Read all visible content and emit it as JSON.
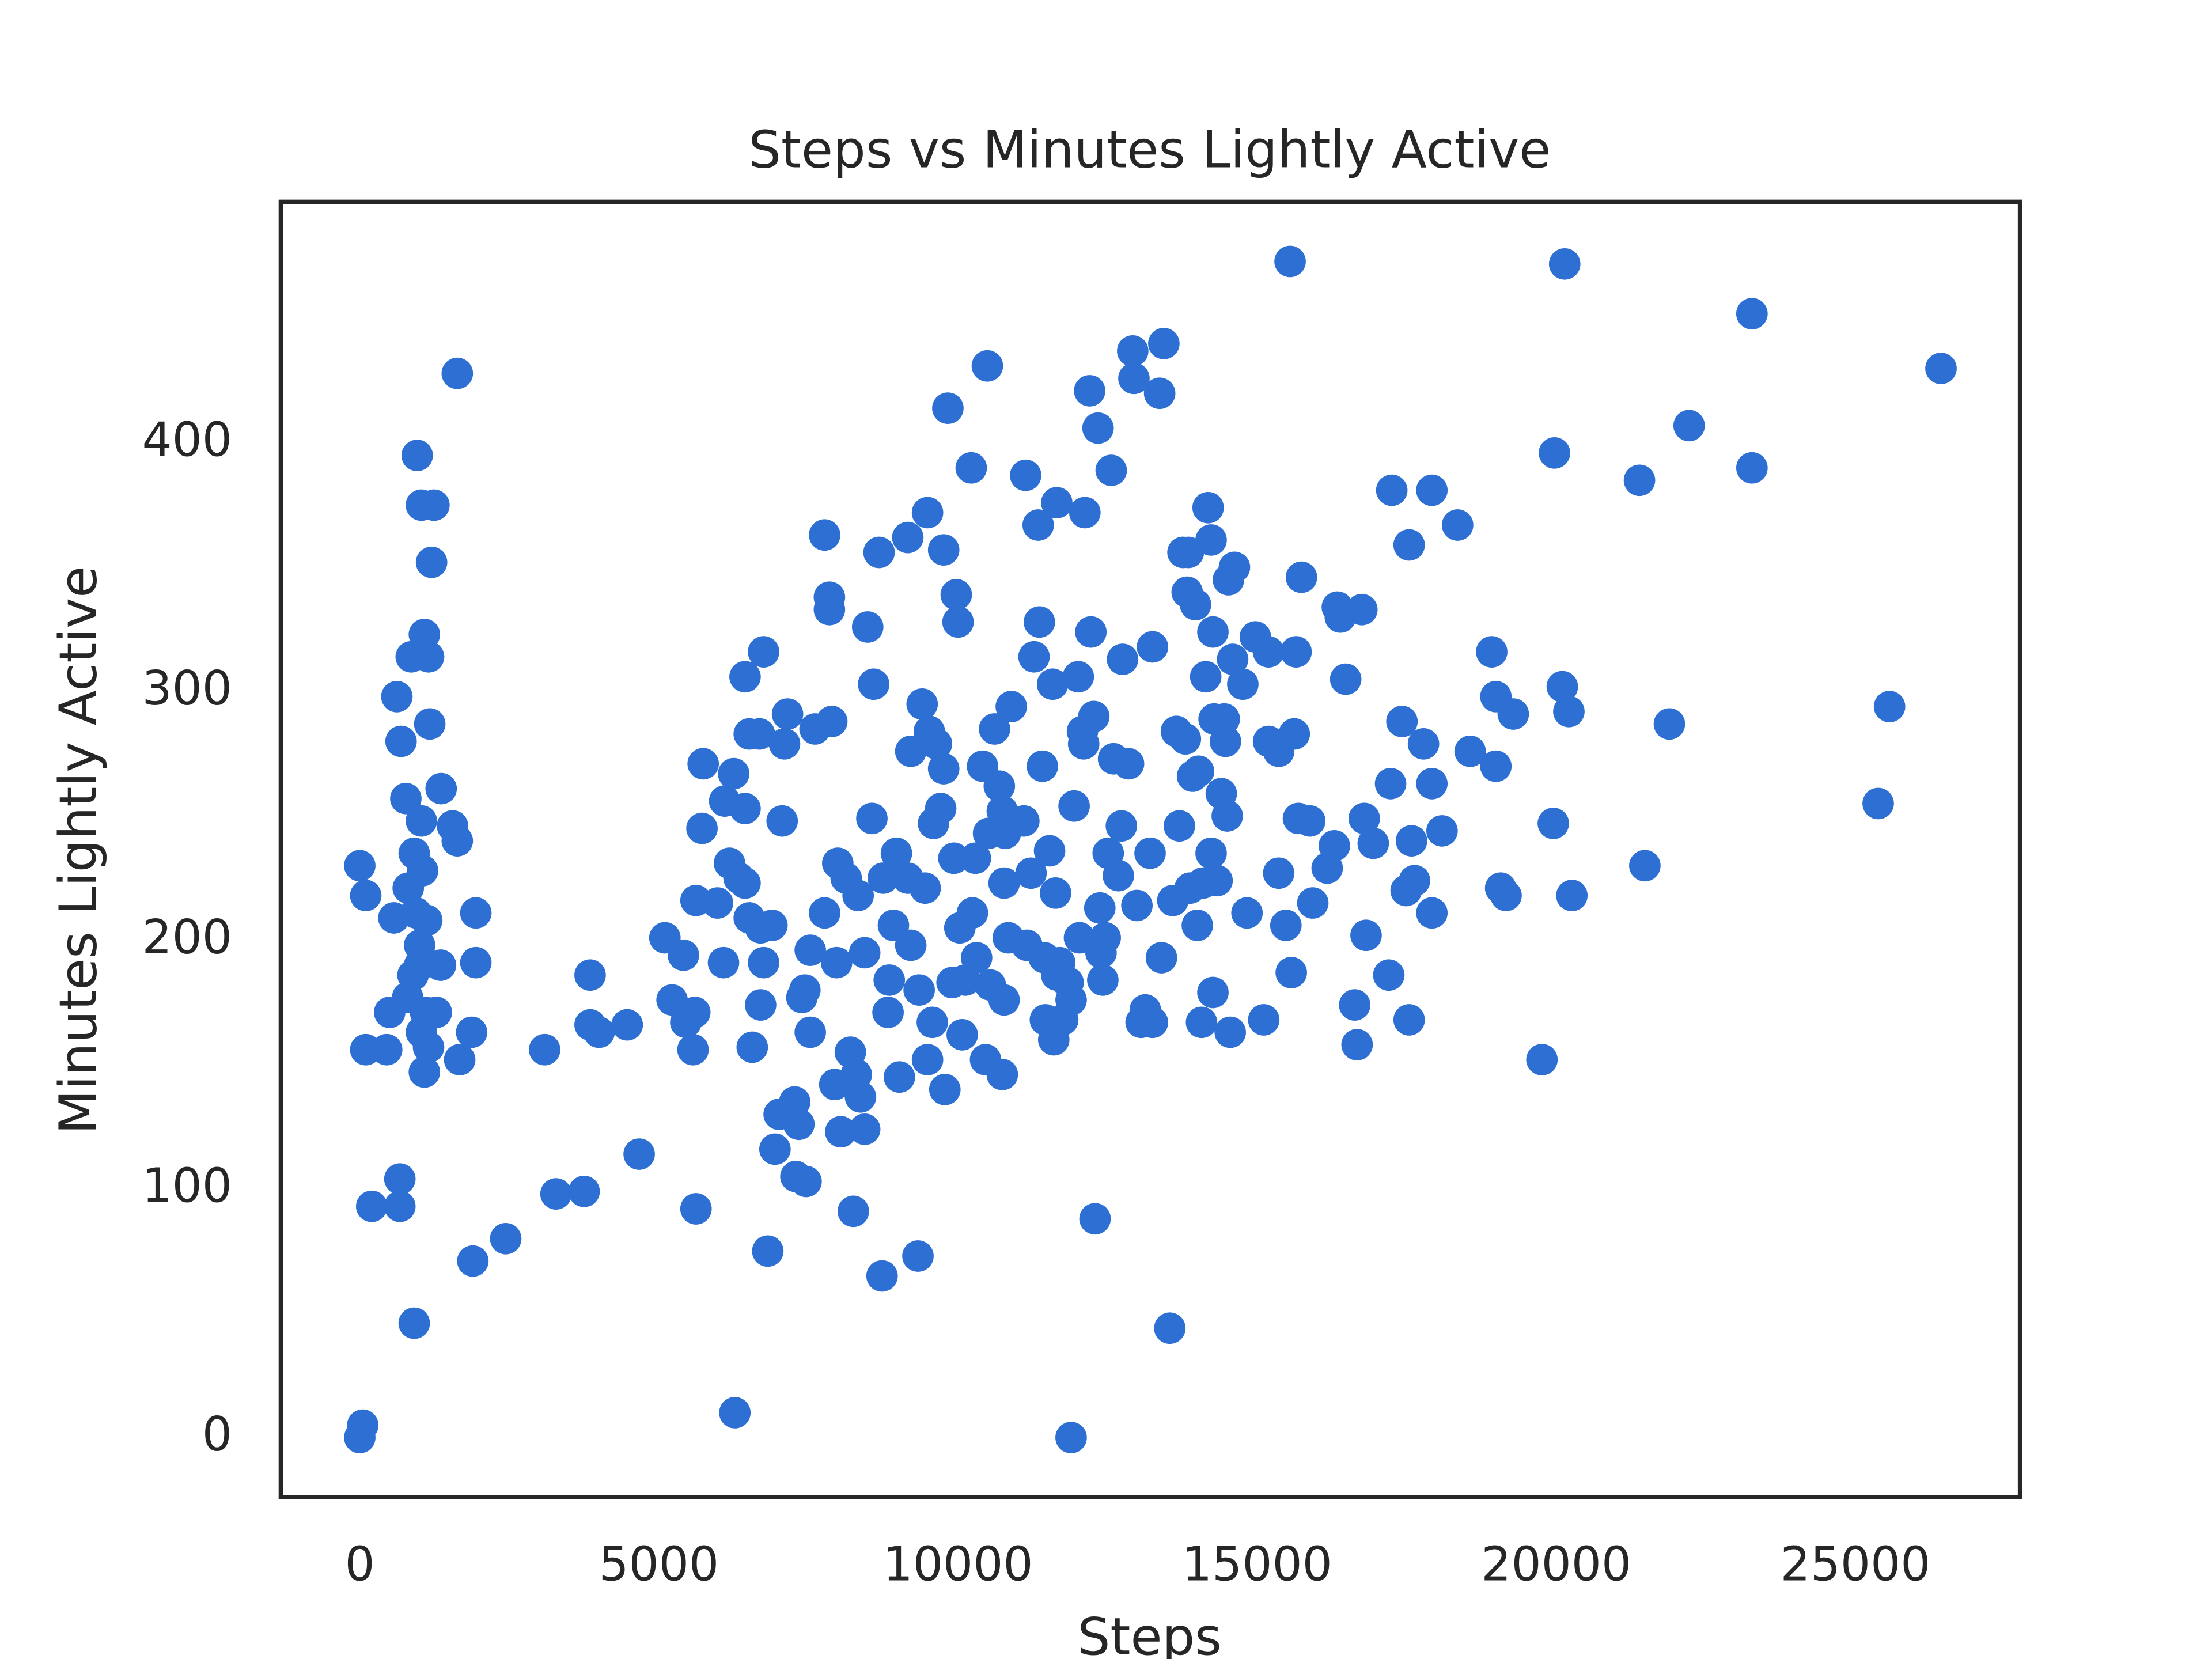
{
  "chart_data": {
    "type": "scatter",
    "title": "Steps vs Minutes Lightly Active",
    "x_label": "Steps",
    "y_label": "Minutes Lightly Active",
    "color": "#2e6fd3",
    "xlim": [
      -1320,
      27750
    ],
    "ylim": [
      -24,
      497
    ],
    "xticks": [
      0,
      5000,
      10000,
      15000,
      20000,
      25000
    ],
    "yticks": [
      0,
      100,
      200,
      300,
      400
    ],
    "grid": false,
    "x": [
      0,
      50,
      0,
      100,
      100,
      450,
      200,
      670,
      670,
      910,
      500,
      570,
      620,
      690,
      770,
      810,
      860,
      960,
      1030,
      1240,
      1080,
      1150,
      1170,
      1200,
      1360,
      1030,
      1550,
      1630,
      1630,
      910,
      1050,
      940,
      1120,
      1000,
      1000,
      890,
      800,
      1100,
      1030,
      1150,
      1080,
      1280,
      1350,
      1670,
      1870,
      1940,
      1940,
      1890,
      2440,
      3090,
      3280,
      3750,
      3850,
      3850,
      4000,
      4470,
      4670,
      5100,
      5220,
      5410,
      5450,
      5600,
      5570,
      5620,
      5620,
      5720,
      5740,
      5980,
      6080,
      6100,
      6180,
      6250,
      6270,
      6340,
      6440,
      6440,
      6440,
      6510,
      6510,
      6560,
      6680,
      6700,
      6750,
      6750,
      6700,
      6820,
      6890,
      6940,
      7010,
      7060,
      7100,
      7150,
      7270,
      7290,
      7340,
      7390,
      7440,
      7460,
      7530,
      7530,
      7610,
      7770,
      7770,
      7850,
      7850,
      7890,
      7940,
      7970,
      7990,
      8040,
      8130,
      8200,
      8250,
      8300,
      8330,
      8370,
      8440,
      8440,
      8490,
      8560,
      8590,
      8680,
      8730,
      8750,
      8830,
      8850,
      8920,
      8970,
      9020,
      9160,
      9160,
      9210,
      9210,
      9330,
      9350,
      9400,
      9450,
      9490,
      9520,
      9490,
      9570,
      9590,
      9640,
      9710,
      9760,
      9780,
      9760,
      9830,
      9900,
      9930,
      9970,
      10000,
      10030,
      10070,
      10120,
      10220,
      10240,
      10290,
      10310,
      10410,
      10460,
      10490,
      10510,
      10540,
      10610,
      10690,
      10740,
      10740,
      10770,
      10770,
      10790,
      10840,
      10890,
      11100,
      11130,
      11150,
      11220,
      11270,
      11340,
      11360,
      11410,
      11440,
      11460,
      11530,
      11580,
      11600,
      11630,
      11650,
      11650,
      11700,
      11750,
      11840,
      11890,
      11890,
      11940,
      12010,
      12030,
      12080,
      12100,
      12120,
      12200,
      12220,
      12270,
      12290,
      12340,
      12370,
      12390,
      12420,
      12460,
      12510,
      12560,
      12600,
      12680,
      12730,
      12750,
      12850,
      12920,
      12940,
      12990,
      13060,
      13130,
      13210,
      13250,
      13250,
      13370,
      13400,
      13440,
      13540,
      13590,
      13650,
      13700,
      13760,
      13800,
      13830,
      13850,
      13880,
      13920,
      13970,
      14000,
      14020,
      14070,
      14090,
      14140,
      14180,
      14230,
      14230,
      14260,
      14260,
      14280,
      14330,
      14400,
      14450,
      14470,
      14500,
      14520,
      14550,
      14590,
      14620,
      14760,
      14830,
      14970,
      15110,
      15190,
      15190,
      15360,
      15360,
      15480,
      15550,
      15570,
      15620,
      15650,
      15690,
      15740,
      15880,
      15930,
      16170,
      16290,
      16340,
      16390,
      16480,
      16630,
      16670,
      16750,
      16790,
      16820,
      16940,
      17200,
      17230,
      17250,
      17420,
      17490,
      17540,
      17540,
      17580,
      17630,
      17780,
      17920,
      17920,
      17920,
      18090,
      18350,
      18560,
      18920,
      18990,
      18990,
      19070,
      19160,
      19280,
      19760,
      19950,
      19970,
      20100,
      20140,
      20210,
      20260,
      21390,
      21480,
      21890,
      22220,
      23270,
      23270,
      25380,
      25570,
      26430
    ],
    "values": [
      0,
      5,
      230,
      218,
      156,
      156,
      93,
      93,
      104,
      46,
      171,
      209,
      298,
      280,
      257,
      221,
      314,
      395,
      375,
      375,
      323,
      314,
      287,
      352,
      261,
      248,
      246,
      240,
      428,
      235,
      228,
      211,
      208,
      198,
      190,
      186,
      177,
      171,
      163,
      157,
      147,
      171,
      190,
      152,
      163,
      211,
      191,
      71,
      80,
      156,
      98,
      99,
      186,
      166,
      163,
      166,
      114,
      201,
      176,
      194,
      167,
      171,
      156,
      216,
      92,
      245,
      271,
      215,
      191,
      256,
      231,
      267,
      10,
      225,
      223,
      253,
      306,
      283,
      209,
      157,
      283,
      205,
      316,
      191,
      174,
      75,
      206,
      116,
      130,
      248,
      279,
      291,
      135,
      105,
      126,
      177,
      180,
      103,
      163,
      196,
      285,
      363,
      211,
      338,
      333,
      288,
      142,
      191,
      231,
      123,
      225,
      155,
      91,
      146,
      218,
      137,
      124,
      195,
      326,
      249,
      303,
      356,
      65,
      225,
      171,
      184,
      206,
      235,
      145,
      225,
      362,
      198,
      276,
      73,
      180,
      295,
      221,
      372,
      284,
      152,
      167,
      247,
      279,
      253,
      269,
      140,
      357,
      414,
      183,
      233,
      339,
      328,
      205,
      162,
      184,
      390,
      211,
      233,
      193,
      270,
      152,
      431,
      243,
      182,
      285,
      262,
      252,
      146,
      176,
      223,
      243,
      201,
      294,
      248,
      387,
      198,
      227,
      314,
      367,
      328,
      270,
      193,
      168,
      236,
      303,
      160,
      219,
      376,
      186,
      191,
      168,
      183,
      176,
      0,
      254,
      306,
      201,
      284,
      279,
      372,
      421,
      324,
      290,
      88,
      406,
      213,
      195,
      184,
      201,
      235,
      389,
      273,
      226,
      246,
      313,
      271,
      437,
      426,
      214,
      167,
      172,
      235,
      318,
      167,
      420,
      193,
      440,
      44,
      216,
      284,
      246,
      356,
      281,
      340,
      356,
      221,
      266,
      335,
      206,
      268,
      167,
      223,
      306,
      374,
      361,
      235,
      324,
      179,
      289,
      224,
      259,
      289,
      280,
      250,
      345,
      163,
      313,
      350,
      303,
      211,
      322,
      168,
      316,
      280,
      227,
      276,
      206,
      473,
      187,
      283,
      316,
      249,
      346,
      248,
      215,
      229,
      238,
      334,
      330,
      305,
      174,
      158,
      333,
      249,
      202,
      239,
      186,
      263,
      381,
      288,
      220,
      359,
      168,
      240,
      224,
      279,
      381,
      263,
      211,
      244,
      367,
      276,
      316,
      298,
      270,
      221,
      218,
      291,
      152,
      247,
      396,
      302,
      472,
      292,
      218,
      385,
      230,
      287,
      407,
      452,
      390,
      255,
      294,
      430
    ]
  }
}
